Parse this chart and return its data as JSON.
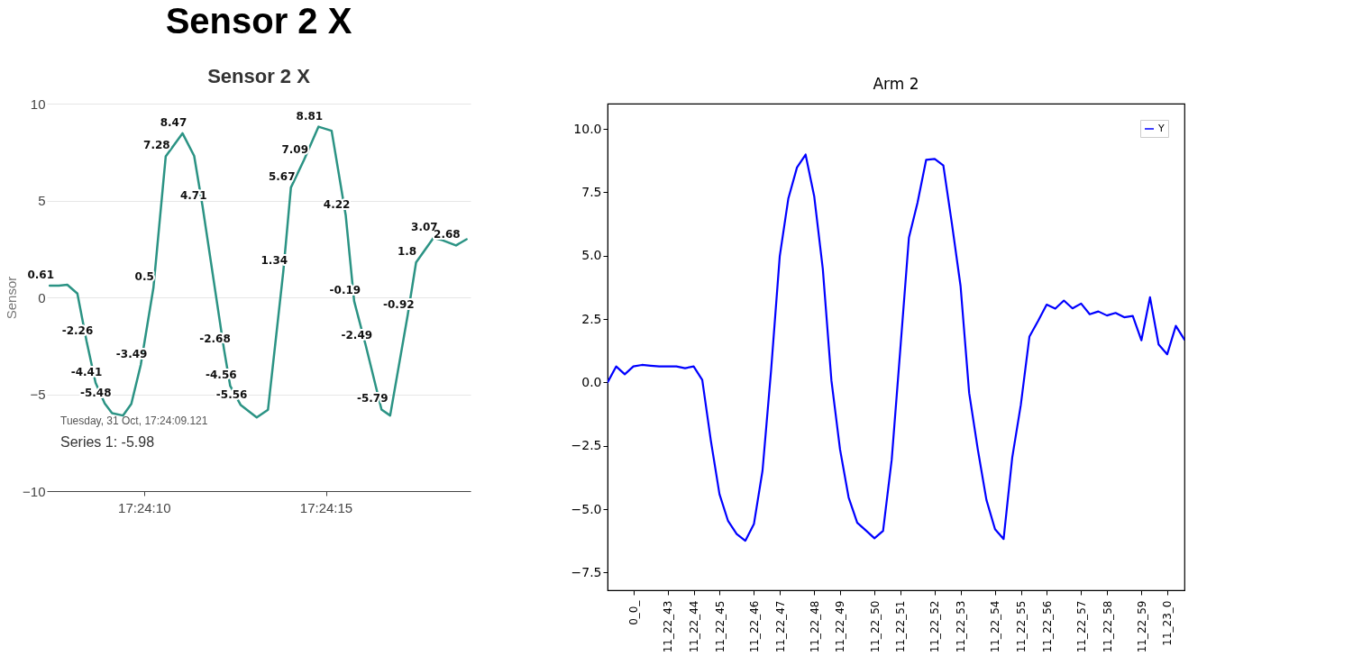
{
  "chart_data": [
    {
      "type": "line",
      "title": "Sensor 2 X",
      "subtitle": "Sensor 2 X",
      "ylabel": "Sensor",
      "xlim": [
        17.402036,
        17.405272
      ],
      "xticks": [
        {
          "value": 17.402778,
          "label": "17:24:10"
        },
        {
          "value": 17.404167,
          "label": "17:24:15"
        }
      ],
      "ylim": [
        -10,
        10
      ],
      "yticks": [
        -10,
        -5,
        0,
        5,
        10
      ],
      "grid": "y",
      "legend": false,
      "x": [
        17.402058,
        17.402128,
        17.402192,
        17.402269,
        17.402339,
        17.402408,
        17.402478,
        17.402534,
        17.402617,
        17.402681,
        17.402753,
        17.40285,
        17.402944,
        17.403072,
        17.403161,
        17.403225,
        17.403389,
        17.403436,
        17.403517,
        17.403639,
        17.403725,
        17.403842,
        17.4039,
        17.404,
        17.404111,
        17.404211,
        17.404319,
        17.404383,
        17.404472,
        17.404592,
        17.404658,
        17.404792,
        17.404856,
        17.404989,
        17.405058,
        17.405161,
        17.405242
      ],
      "series": [
        {
          "color": "#2b9384",
          "values": [
            0.61,
            0.6,
            0.65,
            0.2,
            -2.26,
            -4.41,
            -5.48,
            -5.98,
            -6.1,
            -5.5,
            -3.49,
            0.5,
            7.28,
            8.47,
            7.3,
            4.71,
            -2.68,
            -4.56,
            -5.56,
            -6.2,
            -5.8,
            1.34,
            5.67,
            7.09,
            8.81,
            8.6,
            4.22,
            -0.19,
            -2.49,
            -5.79,
            -6.1,
            -0.92,
            1.8,
            3.07,
            2.95,
            2.68,
            3.0
          ],
          "value_labels": [
            "0.61",
            null,
            null,
            null,
            "-2.26",
            "-4.41",
            "-5.48",
            null,
            null,
            null,
            "-3.49",
            "0.5",
            "7.28",
            "8.47",
            null,
            "4.71",
            "-2.68",
            "-4.56",
            "-5.56",
            null,
            null,
            "1.34",
            "5.67",
            "7.09",
            "8.81",
            null,
            "4.22",
            "-0.19",
            "-2.49",
            "-5.79",
            null,
            "-0.92",
            "1.8",
            "3.07",
            null,
            "2.68",
            null
          ]
        }
      ],
      "annotations": [
        "Tuesday, 31 Oct, 17:24:09.121",
        "Series 1: -5.98"
      ]
    },
    {
      "type": "line",
      "title": "Arm 2",
      "categories": [
        null,
        null,
        null,
        "0_0_",
        null,
        null,
        null,
        "11_22_43",
        null,
        null,
        "11_22_44",
        null,
        null,
        "11_22_45",
        null,
        null,
        null,
        "11_22_46",
        null,
        null,
        "11_22_47",
        null,
        null,
        null,
        "11_22_48",
        null,
        null,
        "11_22_49",
        null,
        null,
        null,
        "11_22_50",
        null,
        null,
        "11_22_51",
        null,
        null,
        null,
        "11_22_52",
        null,
        null,
        "11_22_53",
        null,
        null,
        null,
        "11_22_54",
        null,
        null,
        "11_22_55",
        null,
        null,
        "11_22_56",
        null,
        null,
        null,
        "11_22_57",
        null,
        null,
        "11_22_58",
        null,
        null,
        null,
        "11_22_59",
        null,
        null,
        "11_23_0",
        null,
        null
      ],
      "ylim": [
        -8.2,
        11.0
      ],
      "yticks": [
        {
          "value": -7.5,
          "label": "−7.5"
        },
        {
          "value": -5,
          "label": "−5.0"
        },
        {
          "value": -2.5,
          "label": "−2.5"
        },
        {
          "value": 0,
          "label": "0.0"
        },
        {
          "value": 2.5,
          "label": "2.5"
        },
        {
          "value": 5,
          "label": "5.0"
        },
        {
          "value": 7.5,
          "label": "7.5"
        },
        {
          "value": 10,
          "label": "10.0"
        }
      ],
      "grid": false,
      "legend": "top right",
      "series": [
        {
          "name": "Y",
          "color": "#0000ff",
          "values": [
            0.0,
            0.63,
            0.32,
            0.63,
            0.69,
            0.66,
            0.63,
            0.63,
            0.63,
            0.56,
            0.63,
            0.1,
            -2.3,
            -4.41,
            -5.47,
            -5.98,
            -6.25,
            -5.59,
            -3.48,
            0.5,
            4.98,
            7.26,
            8.48,
            8.99,
            7.35,
            4.48,
            0.08,
            -2.64,
            -4.54,
            -5.54,
            -5.84,
            -6.15,
            -5.86,
            -3.06,
            1.3,
            5.71,
            7.09,
            8.78,
            8.82,
            8.56,
            6.25,
            3.8,
            -0.42,
            -2.64,
            -4.63,
            -5.79,
            -6.18,
            -2.97,
            -0.88,
            1.81,
            2.42,
            3.07,
            2.91,
            3.23,
            2.92,
            3.11,
            2.69,
            2.8,
            2.64,
            2.74,
            2.57,
            2.62,
            1.66,
            3.36,
            1.5,
            1.11,
            2.23,
            1.69
          ]
        }
      ]
    }
  ]
}
